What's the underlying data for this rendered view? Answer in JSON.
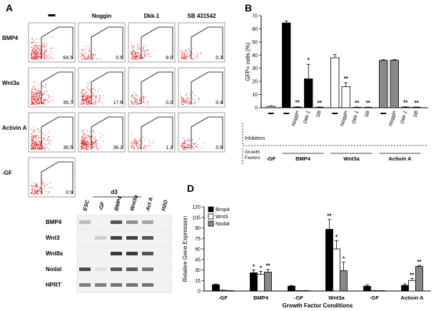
{
  "panel_letters": [
    "A",
    "B",
    "C",
    "D"
  ],
  "panelA": {
    "col_headers": [
      "",
      "Noggin",
      "Dkk-1",
      "SB 431542"
    ],
    "row_labels": [
      "BMP4",
      "Wnt3a",
      "Activin A",
      "-GF"
    ],
    "values": [
      [
        "64.5",
        "0.5",
        "9.0",
        "0.3"
      ],
      [
        "35.7",
        "17.6",
        "0.2",
        "0.4"
      ],
      [
        "36.5",
        "36.2",
        "1.2",
        "0.6"
      ],
      [
        "0.9",
        null,
        null,
        null
      ]
    ],
    "density": [
      [
        0.9,
        0.15,
        0.45,
        0.15
      ],
      [
        0.85,
        0.7,
        0.15,
        0.15
      ],
      [
        0.85,
        0.85,
        0.2,
        0.2
      ],
      [
        0.3,
        null,
        null,
        null
      ]
    ],
    "dot_color": "#e31a1c"
  },
  "chart_data": [
    {
      "type": "bar",
      "panel": "B",
      "ylabel": "GFP+ cells (%)",
      "ylim": [
        0,
        70
      ],
      "yticks": [
        0,
        10,
        20,
        30,
        40,
        50,
        60,
        70
      ],
      "inhibitors_label": "Inhibitors",
      "growth_factors_label": "Growth Factors",
      "groups": [
        {
          "factor": "-GF",
          "color": "#ffffff",
          "bars": [
            {
              "inhibitor": "–",
              "value": 1,
              "err": 0.3
            }
          ]
        },
        {
          "factor": "BMP4",
          "color": "#000000",
          "bars": [
            {
              "inhibitor": "–",
              "value": 64.5,
              "err": 1.5
            },
            {
              "inhibitor": "Noggin",
              "value": 0.5,
              "err": 0.2,
              "sig": "**"
            },
            {
              "inhibitor": "Dkk-1",
              "value": 22,
              "err": 11,
              "sig": "*"
            },
            {
              "inhibitor": "SB",
              "value": 0.4,
              "err": 0.2,
              "sig": "**"
            }
          ]
        },
        {
          "factor": "Wnt3a",
          "color": "#ffffff",
          "bars": [
            {
              "inhibitor": "–",
              "value": 38,
              "err": 2.5
            },
            {
              "inhibitor": "Noggin",
              "value": 16,
              "err": 3,
              "sig": "**"
            },
            {
              "inhibitor": "Dkk-1",
              "value": 0.3,
              "err": 0.2,
              "sig": "**"
            },
            {
              "inhibitor": "SB",
              "value": 0.3,
              "err": 0.2,
              "sig": "**"
            }
          ]
        },
        {
          "factor": "Activin A",
          "color": "#888888",
          "bars": [
            {
              "inhibitor": "–",
              "value": 36,
              "err": 0.5
            },
            {
              "inhibitor": "Noggin",
              "value": 36.2,
              "err": 0.5
            },
            {
              "inhibitor": "Dkk-1",
              "value": 0.5,
              "err": 0.2,
              "sig": "**"
            },
            {
              "inhibitor": "SB",
              "value": 0.4,
              "err": 0.2,
              "sig": "**"
            }
          ]
        }
      ]
    },
    {
      "type": "bar",
      "panel": "D",
      "ylabel": "Relative Gene Expression",
      "xlabel": "Growth Factor Conditions",
      "ylim": [
        0,
        120
      ],
      "yticks": [
        0,
        15,
        30,
        45,
        60,
        75,
        90,
        105,
        120
      ],
      "legend": [
        {
          "name": "Bmp4",
          "color": "#000000"
        },
        {
          "name": "Wnt3",
          "color": "#ffffff"
        },
        {
          "name": "Nodal",
          "color": "#888888"
        }
      ],
      "groups": [
        {
          "label": "-GF",
          "bars": [
            {
              "series": "Bmp4",
              "value": 9,
              "err": 1
            },
            {
              "series": "Wnt3",
              "value": 1,
              "err": 0.3
            },
            {
              "series": "Nodal",
              "value": 0.5,
              "err": 0.2
            }
          ]
        },
        {
          "label": "BMP4",
          "bars": [
            {
              "series": "Bmp4",
              "value": 26,
              "err": 4,
              "sig": "*"
            },
            {
              "series": "Wnt3",
              "value": 24,
              "err": 4,
              "sig": "*"
            },
            {
              "series": "Nodal",
              "value": 27,
              "err": 4,
              "sig": "**"
            }
          ]
        },
        {
          "label": "-GF",
          "bars": [
            {
              "series": "Bmp4",
              "value": 7,
              "err": 1
            },
            {
              "series": "Wnt3",
              "value": 0.5,
              "err": 0.2
            },
            {
              "series": "Nodal",
              "value": 0.5,
              "err": 0.2
            }
          ]
        },
        {
          "label": "Wnt3a",
          "bars": [
            {
              "series": "Bmp4",
              "value": 88,
              "err": 14,
              "sig": "**"
            },
            {
              "series": "Wnt3",
              "value": 60,
              "err": 12,
              "sig": "*"
            },
            {
              "series": "Nodal",
              "value": 29,
              "err": 12,
              "sig": "*"
            }
          ]
        },
        {
          "label": "-GF",
          "bars": [
            {
              "series": "Bmp4",
              "value": 7,
              "err": 2
            },
            {
              "series": "Wnt3",
              "value": 0.5,
              "err": 0.2
            },
            {
              "series": "Nodal",
              "value": 0.5,
              "err": 0.2
            }
          ]
        },
        {
          "label": "Activin A",
          "bars": [
            {
              "series": "Bmp4",
              "value": 8,
              "err": 2
            },
            {
              "series": "Wnt3",
              "value": 15,
              "err": 3,
              "sig": "**"
            },
            {
              "series": "Nodal",
              "value": 35,
              "err": 1.5,
              "sig": "**"
            }
          ]
        }
      ]
    }
  ],
  "panelC": {
    "timepoint": "d3",
    "lanes": [
      "ESC",
      "-GF",
      "BMP4",
      "Wnt3a",
      "Act A",
      "H2O"
    ],
    "genes": [
      "BMP4",
      "Wnt3",
      "Wnt8a",
      "Nodal",
      "HPRT"
    ],
    "band_intensity": [
      [
        0.25,
        0.0,
        0.75,
        0.45,
        0.35,
        0.0
      ],
      [
        0.0,
        0.15,
        0.85,
        0.85,
        0.75,
        0.0
      ],
      [
        0.0,
        0.0,
        0.9,
        0.9,
        0.75,
        0.0
      ],
      [
        0.8,
        0.05,
        0.75,
        0.75,
        0.6,
        0.0
      ],
      [
        0.55,
        0.55,
        0.6,
        0.6,
        0.6,
        0.0
      ]
    ]
  }
}
